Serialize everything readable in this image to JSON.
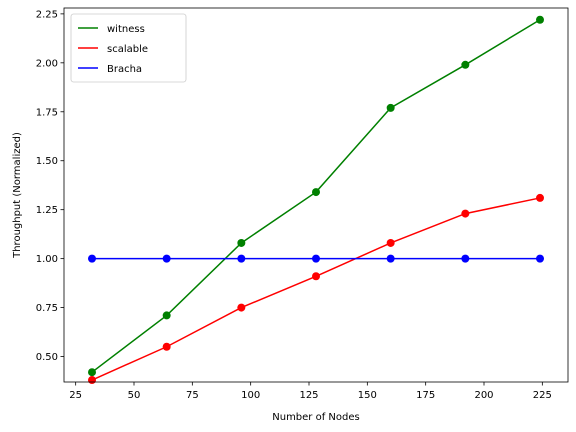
{
  "chart_data": {
    "type": "line",
    "title": "",
    "xlabel": "Number of Nodes",
    "ylabel": "Throughput (Normalized)",
    "x": [
      32,
      64,
      96,
      128,
      160,
      192,
      224
    ],
    "xlim": [
      20,
      236
    ],
    "ylim": [
      0.37,
      2.28
    ],
    "xticks": [
      25,
      50,
      75,
      100,
      125,
      150,
      175,
      200,
      225
    ],
    "xtick_labels": [
      "25",
      "50",
      "75",
      "100",
      "125",
      "150",
      "175",
      "200",
      "225"
    ],
    "yticks": [
      0.5,
      0.75,
      1.0,
      1.25,
      1.5,
      1.75,
      2.0,
      2.25
    ],
    "ytick_labels": [
      "0.50",
      "0.75",
      "1.00",
      "1.25",
      "1.50",
      "1.75",
      "2.00",
      "2.25"
    ],
    "grid": false,
    "legend_position": "top-left",
    "series": [
      {
        "name": "witness",
        "color": "#008000",
        "values": [
          0.42,
          0.71,
          1.08,
          1.34,
          1.77,
          1.99,
          2.22
        ]
      },
      {
        "name": "scalable",
        "color": "#ff0000",
        "values": [
          0.38,
          0.55,
          0.75,
          0.91,
          1.08,
          1.23,
          1.31
        ]
      },
      {
        "name": "Bracha",
        "color": "#0000ff",
        "values": [
          1.0,
          1.0,
          1.0,
          1.0,
          1.0,
          1.0,
          1.0
        ]
      }
    ]
  }
}
